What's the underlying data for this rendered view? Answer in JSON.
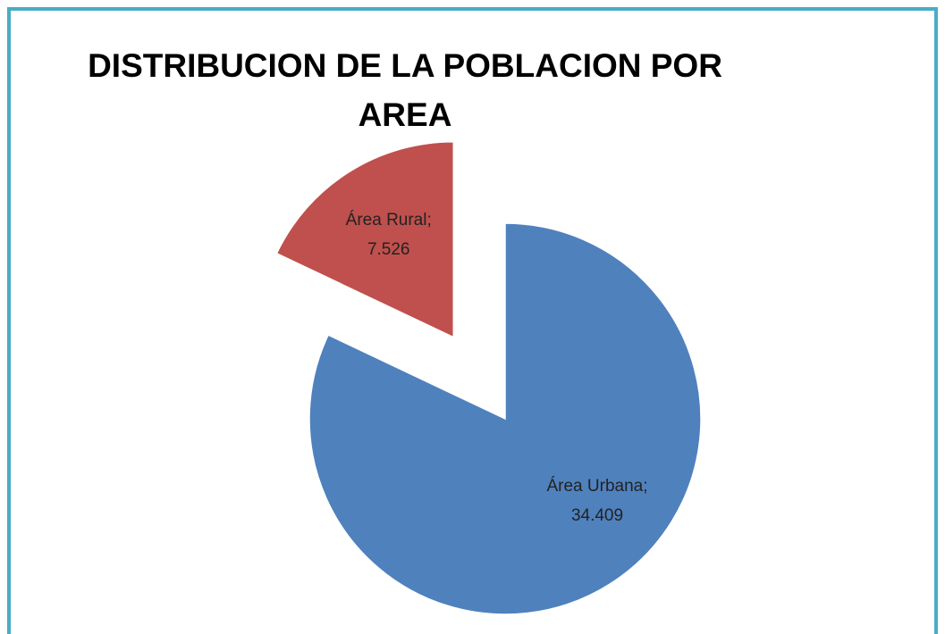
{
  "chart_data": {
    "type": "pie",
    "title_lines": [
      "DISTRIBUCION DE LA POBLACION POR",
      "AREA"
    ],
    "categories": [
      "Área Urbana;",
      "Área Rural;"
    ],
    "values": [
      34409,
      7526
    ],
    "value_labels": [
      "34.409",
      "7.526"
    ],
    "colors": [
      "#4f81bd",
      "#c0504d"
    ],
    "exploded": [
      false,
      true
    ]
  }
}
